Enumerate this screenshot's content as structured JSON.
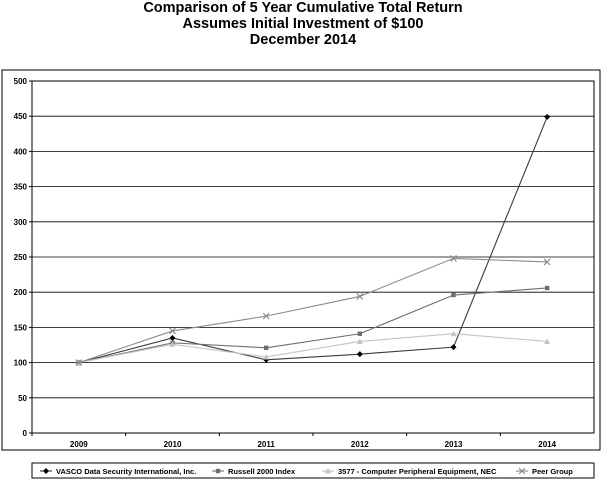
{
  "title": {
    "line1": "Comparison of 5 Year Cumulative Total Return",
    "line2": "Assumes Initial Investment of $100",
    "line3": "December 2014"
  },
  "chart_data": {
    "type": "line",
    "title": "Comparison of 5 Year Cumulative Total Return",
    "subtitle": "Assumes Initial Investment of $100 / December 2014",
    "categories": [
      "2009",
      "2010",
      "2011",
      "2012",
      "2013",
      "2014"
    ],
    "yticks": [
      0,
      50,
      100,
      150,
      200,
      250,
      300,
      350,
      400,
      450,
      500
    ],
    "ylim": [
      0,
      500
    ],
    "grid": true,
    "legend_position": "bottom",
    "series": [
      {
        "name": "VASCO Data Security International, Inc.",
        "marker": "diamond",
        "color": "#3a3a3a",
        "values": [
          100,
          135,
          104,
          112,
          122,
          449
        ]
      },
      {
        "name": "Russell 2000 Index",
        "marker": "square",
        "color": "#6e6e6e",
        "values": [
          100,
          128,
          121,
          141,
          196,
          206
        ]
      },
      {
        "name": "3577 - Computer Peripheral Equipment, NEC",
        "marker": "triangle",
        "color": "#c4c4c4",
        "values": [
          100,
          126,
          108,
          130,
          141,
          130
        ]
      },
      {
        "name": "Peer Group",
        "marker": "x",
        "color": "#8a8a8a",
        "values": [
          100,
          145,
          166,
          194,
          248,
          243
        ]
      }
    ]
  }
}
